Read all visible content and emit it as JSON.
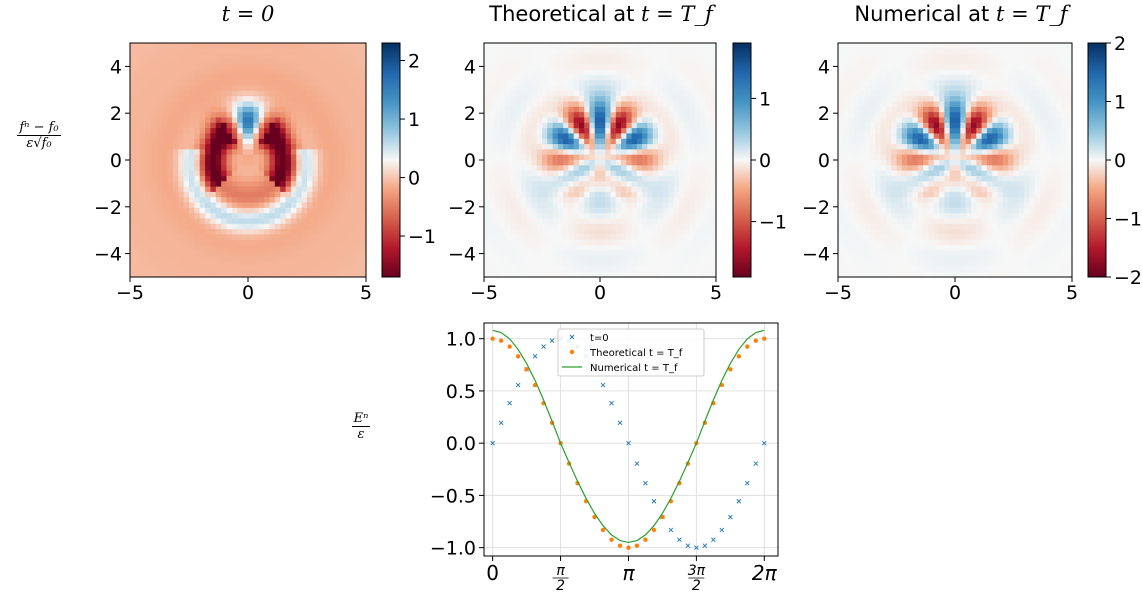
{
  "figure": {
    "panel_titles": [
      {
        "prefix": "",
        "math": "t = 0"
      },
      {
        "prefix": "Theoretical at ",
        "math": "t = T_f"
      },
      {
        "prefix": "Numerical at ",
        "math": "t = T_f"
      }
    ],
    "heatmap_ylabel": {
      "numerator": "fⁿ − f₀",
      "denominator": "ε√f₀"
    },
    "line_ylabel": {
      "numerator": "Eⁿ",
      "denominator": "ε"
    }
  },
  "chart_data": [
    {
      "type": "heatmap",
      "title": "t = 0",
      "xlim": [
        -5,
        5
      ],
      "ylim": [
        -5,
        5
      ],
      "xticks": [
        "−5",
        "0",
        "5"
      ],
      "yticks": [
        "−4",
        "−2",
        "0",
        "2",
        "4"
      ],
      "colormap": "RdBu",
      "colorbar": {
        "min": -1.7,
        "max": 2.3,
        "ticks": [
          "−1",
          "0",
          "1",
          "2"
        ]
      },
      "pattern": {
        "n_lobes": 4,
        "rotation_deg": 0,
        "arc_sign": -1
      }
    },
    {
      "type": "heatmap",
      "title": "Theoretical at t = T_f",
      "xlim": [
        -5,
        5
      ],
      "ylim": [
        -5,
        5
      ],
      "xticks": [
        "−5",
        "0",
        "5"
      ],
      "yticks": [
        "−4",
        "−2",
        "0",
        "2",
        "4"
      ],
      "colormap": "RdBu",
      "colorbar": {
        "min": -1.9,
        "max": 1.9,
        "ticks": [
          "−1",
          "0",
          "1"
        ]
      },
      "pattern": {
        "n_lobes": 6,
        "rotation_deg": 0,
        "arc_sign": 0
      }
    },
    {
      "type": "heatmap",
      "title": "Numerical at t = T_f",
      "xlim": [
        -5,
        5
      ],
      "ylim": [
        -5,
        5
      ],
      "xticks": [
        "−5",
        "0",
        "5"
      ],
      "yticks": [
        "−4",
        "−2",
        "0",
        "2",
        "4"
      ],
      "colormap": "RdBu",
      "colorbar": {
        "min": -2,
        "max": 2,
        "ticks": [
          "−2",
          "−1",
          "0",
          "1",
          "2"
        ]
      },
      "pattern": {
        "n_lobes": 6,
        "rotation_deg": 0,
        "arc_sign": 0
      }
    },
    {
      "type": "line",
      "xlim": [
        -0.2,
        6.6
      ],
      "ylim": [
        -1.08,
        1.15
      ],
      "grid": true,
      "legend": "top-center",
      "xticks": [
        {
          "value": 0,
          "label": "0"
        },
        {
          "value": 1.5708,
          "label": "π/2"
        },
        {
          "value": 3.1416,
          "label": "π"
        },
        {
          "value": 4.7124,
          "label": "3π/2"
        },
        {
          "value": 6.2832,
          "label": "2π"
        }
      ],
      "yticks": [
        {
          "value": -1.0,
          "label": "−1.0"
        },
        {
          "value": -0.5,
          "label": "−0.5"
        },
        {
          "value": 0.0,
          "label": "0.0"
        },
        {
          "value": 0.5,
          "label": "0.5"
        },
        {
          "value": 1.0,
          "label": "1.0"
        }
      ],
      "series": [
        {
          "name": "t=0",
          "style": "x-marker",
          "color": "#1f77b4",
          "x": [
            0,
            0.196,
            0.393,
            0.589,
            0.785,
            0.982,
            1.178,
            1.374,
            1.571,
            1.767,
            1.963,
            2.16,
            2.356,
            2.553,
            2.749,
            2.945,
            3.142,
            3.338,
            3.534,
            3.731,
            3.927,
            4.123,
            4.32,
            4.516,
            4.712,
            4.909,
            5.105,
            5.301,
            5.498,
            5.694,
            5.89,
            6.087,
            6.283
          ],
          "y": [
            0.0,
            0.195,
            0.383,
            0.556,
            0.707,
            0.831,
            0.924,
            0.981,
            1.0,
            0.981,
            0.924,
            0.831,
            0.707,
            0.556,
            0.383,
            0.195,
            0.0,
            -0.195,
            -0.383,
            -0.556,
            -0.707,
            -0.831,
            -0.924,
            -0.981,
            -1.0,
            -0.981,
            -0.924,
            -0.831,
            -0.707,
            -0.556,
            -0.383,
            -0.195,
            0.0
          ]
        },
        {
          "name": "Theoretical t = T_f",
          "style": "dot-marker",
          "color": "#ff7f0e",
          "x": [
            0,
            0.196,
            0.393,
            0.589,
            0.785,
            0.982,
            1.178,
            1.374,
            1.571,
            1.767,
            1.963,
            2.16,
            2.356,
            2.553,
            2.749,
            2.945,
            3.142,
            3.338,
            3.534,
            3.731,
            3.927,
            4.123,
            4.32,
            4.516,
            4.712,
            4.909,
            5.105,
            5.301,
            5.498,
            5.694,
            5.89,
            6.087,
            6.283
          ],
          "y": [
            1.0,
            0.981,
            0.924,
            0.831,
            0.707,
            0.556,
            0.383,
            0.195,
            0.0,
            -0.195,
            -0.383,
            -0.556,
            -0.707,
            -0.831,
            -0.924,
            -0.981,
            -1.0,
            -0.981,
            -0.924,
            -0.831,
            -0.707,
            -0.556,
            -0.383,
            -0.195,
            0.0,
            0.195,
            0.383,
            0.556,
            0.707,
            0.831,
            0.924,
            0.981,
            1.0
          ]
        },
        {
          "name": "Numerical t = T_f",
          "style": "line",
          "color": "#2ca02c",
          "x": [
            0,
            0.196,
            0.393,
            0.589,
            0.785,
            0.982,
            1.178,
            1.374,
            1.571,
            1.767,
            1.963,
            2.16,
            2.356,
            2.553,
            2.749,
            2.945,
            3.142,
            3.338,
            3.534,
            3.731,
            3.927,
            4.123,
            4.32,
            4.516,
            4.712,
            4.909,
            5.105,
            5.301,
            5.498,
            5.694,
            5.89,
            6.087,
            6.283
          ],
          "y": [
            1.08,
            1.059,
            0.998,
            0.897,
            0.763,
            0.6,
            0.413,
            0.211,
            0.0,
            -0.185,
            -0.364,
            -0.528,
            -0.672,
            -0.79,
            -0.878,
            -0.932,
            -0.95,
            -0.932,
            -0.878,
            -0.79,
            -0.672,
            -0.528,
            -0.364,
            -0.185,
            0.0,
            0.211,
            0.413,
            0.6,
            0.763,
            0.897,
            0.998,
            1.059,
            1.08
          ]
        }
      ]
    }
  ]
}
